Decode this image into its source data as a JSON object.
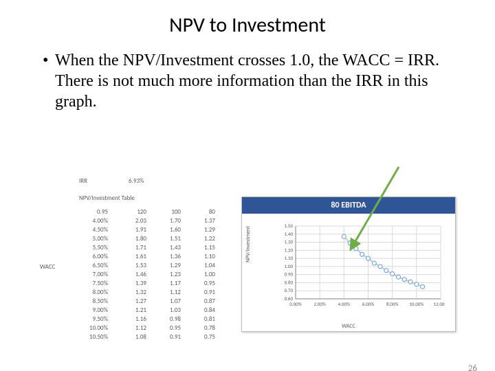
{
  "title": "NPV to Investment",
  "bullet_text": "When the NPV/Investment crosses 1.0, the WACC = IRR.  There is not much more information than the IRR in this graph.",
  "page_number": "26",
  "irr": {
    "label": "IRR",
    "value": "6.93%"
  },
  "table_title": "NPV/Investment Table",
  "wacc_side_label": "WACC",
  "table": {
    "columns": [
      "0.95",
      "120",
      "100",
      "80"
    ],
    "rows": [
      [
        "4.00%",
        "2.03",
        "1.70",
        "1.37"
      ],
      [
        "4.50%",
        "1.91",
        "1.60",
        "1.29"
      ],
      [
        "5.00%",
        "1.80",
        "1.51",
        "1.22"
      ],
      [
        "5.50%",
        "1.71",
        "1.43",
        "1.15"
      ],
      [
        "6.00%",
        "1.61",
        "1.36",
        "1.10"
      ],
      [
        "6.50%",
        "1.53",
        "1.29",
        "1.04"
      ],
      [
        "7.00%",
        "1.46",
        "1.23",
        "1.00"
      ],
      [
        "7.50%",
        "1.39",
        "1.17",
        "0.95"
      ],
      [
        "8.00%",
        "1.32",
        "1.12",
        "0.91"
      ],
      [
        "8.50%",
        "1.27",
        "1.07",
        "0.87"
      ],
      [
        "9.00%",
        "1.21",
        "1.03",
        "0.84"
      ],
      [
        "9.50%",
        "1.16",
        "0.98",
        "0.81"
      ],
      [
        "10.00%",
        "1.12",
        "0.95",
        "0.78"
      ],
      [
        "10.50%",
        "1.08",
        "0.91",
        "0.75"
      ]
    ]
  },
  "chart": {
    "type": "line",
    "title": "80 EBITDA",
    "title_bg": "#2f5597",
    "title_color": "#ffffff",
    "background_color": "#ffffff",
    "grid_color": "#d9d9d9",
    "axis_color": "#808080",
    "xlabel": "WACC",
    "ylabel": "NPV/Investment",
    "label_fontsize": 8,
    "tick_fontsize": 7,
    "tick_color": "#5a5a5a",
    "xlim": [
      0.0,
      12.0
    ],
    "ylim": [
      0.6,
      1.5
    ],
    "xtick_step": 2.0,
    "ytick_step": 0.1,
    "x_values": [
      4.0,
      4.5,
      5.0,
      5.5,
      6.0,
      6.5,
      7.0,
      7.5,
      8.0,
      8.5,
      9.0,
      9.5,
      10.0,
      10.5
    ],
    "y_values": [
      1.37,
      1.29,
      1.22,
      1.15,
      1.1,
      1.04,
      1.0,
      0.95,
      0.91,
      0.87,
      0.84,
      0.81,
      0.78,
      0.75
    ],
    "line_color": "#a0c4e8",
    "line_width": 1.5,
    "marker_fill": "#ffffff",
    "marker_stroke": "#6699cc",
    "marker_radius": 3
  },
  "arrow": {
    "start": [
      580,
      225
    ],
    "end": [
      510,
      345
    ],
    "color": "#70ad47",
    "stroke_width": 3
  }
}
